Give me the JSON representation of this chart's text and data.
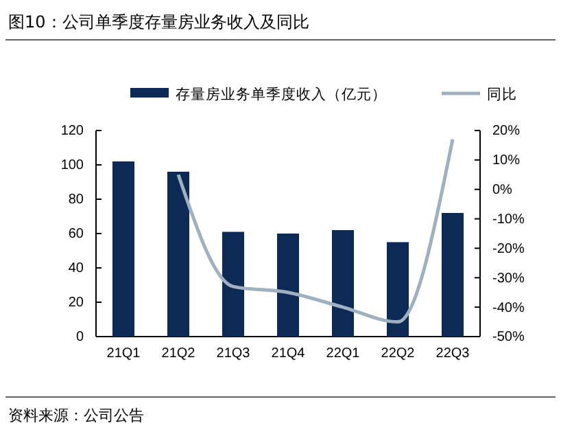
{
  "chart_data": {
    "type": "bar",
    "title": "图10：公司单季度存量房业务收入及同比",
    "categories": [
      "21Q1",
      "21Q2",
      "21Q3",
      "21Q4",
      "22Q1",
      "22Q2",
      "22Q3"
    ],
    "series": [
      {
        "name": "存量房业务单季度收入（亿元）",
        "color": "#0d2a56",
        "values": [
          102,
          96,
          61,
          60,
          62,
          55,
          72
        ]
      },
      {
        "name": "同比",
        "type": "line",
        "axis": "y2",
        "color": "#9fb0c0",
        "values": [
          null,
          5,
          -33,
          -35,
          -40,
          -45,
          17
        ]
      }
    ],
    "ylim": [
      0,
      120
    ],
    "yticks": [
      0,
      20,
      40,
      60,
      80,
      100,
      120
    ],
    "y2lim": [
      -50,
      20
    ],
    "y2ticks": [
      {
        "value": -50,
        "label": "-50%"
      },
      {
        "value": -40,
        "label": "-40%"
      },
      {
        "value": -30,
        "label": "-30%"
      },
      {
        "value": -20,
        "label": "-20%"
      },
      {
        "value": -10,
        "label": "-10%"
      },
      {
        "value": 0,
        "label": "0%"
      },
      {
        "value": 10,
        "label": "10%"
      },
      {
        "value": 20,
        "label": "20%"
      }
    ],
    "legend": "top",
    "grid": false,
    "annotations": [
      "资料来源：公司公告"
    ]
  }
}
